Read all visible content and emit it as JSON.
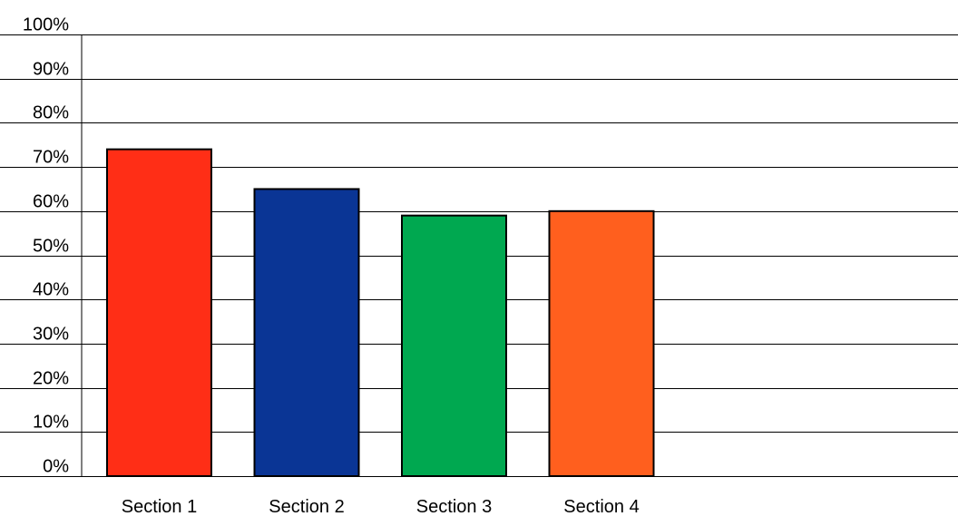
{
  "chart_data": {
    "type": "bar",
    "categories": [
      "Section 1",
      "Section 2",
      "Section 3",
      "Section 4"
    ],
    "values": [
      74,
      65,
      59,
      60
    ],
    "colors": [
      "#FF2E16",
      "#0A3595",
      "#00A850",
      "#FF5F1E"
    ],
    "ylim": [
      0,
      100
    ],
    "yticks": [
      0,
      10,
      20,
      30,
      40,
      50,
      60,
      70,
      80,
      90,
      100
    ],
    "ytick_labels": [
      "0%",
      "10%",
      "20%",
      "30%",
      "40%",
      "50%",
      "60%",
      "70%",
      "80%",
      "90%",
      "100%"
    ],
    "grid": true,
    "title": "",
    "xlabel": "",
    "ylabel": ""
  }
}
